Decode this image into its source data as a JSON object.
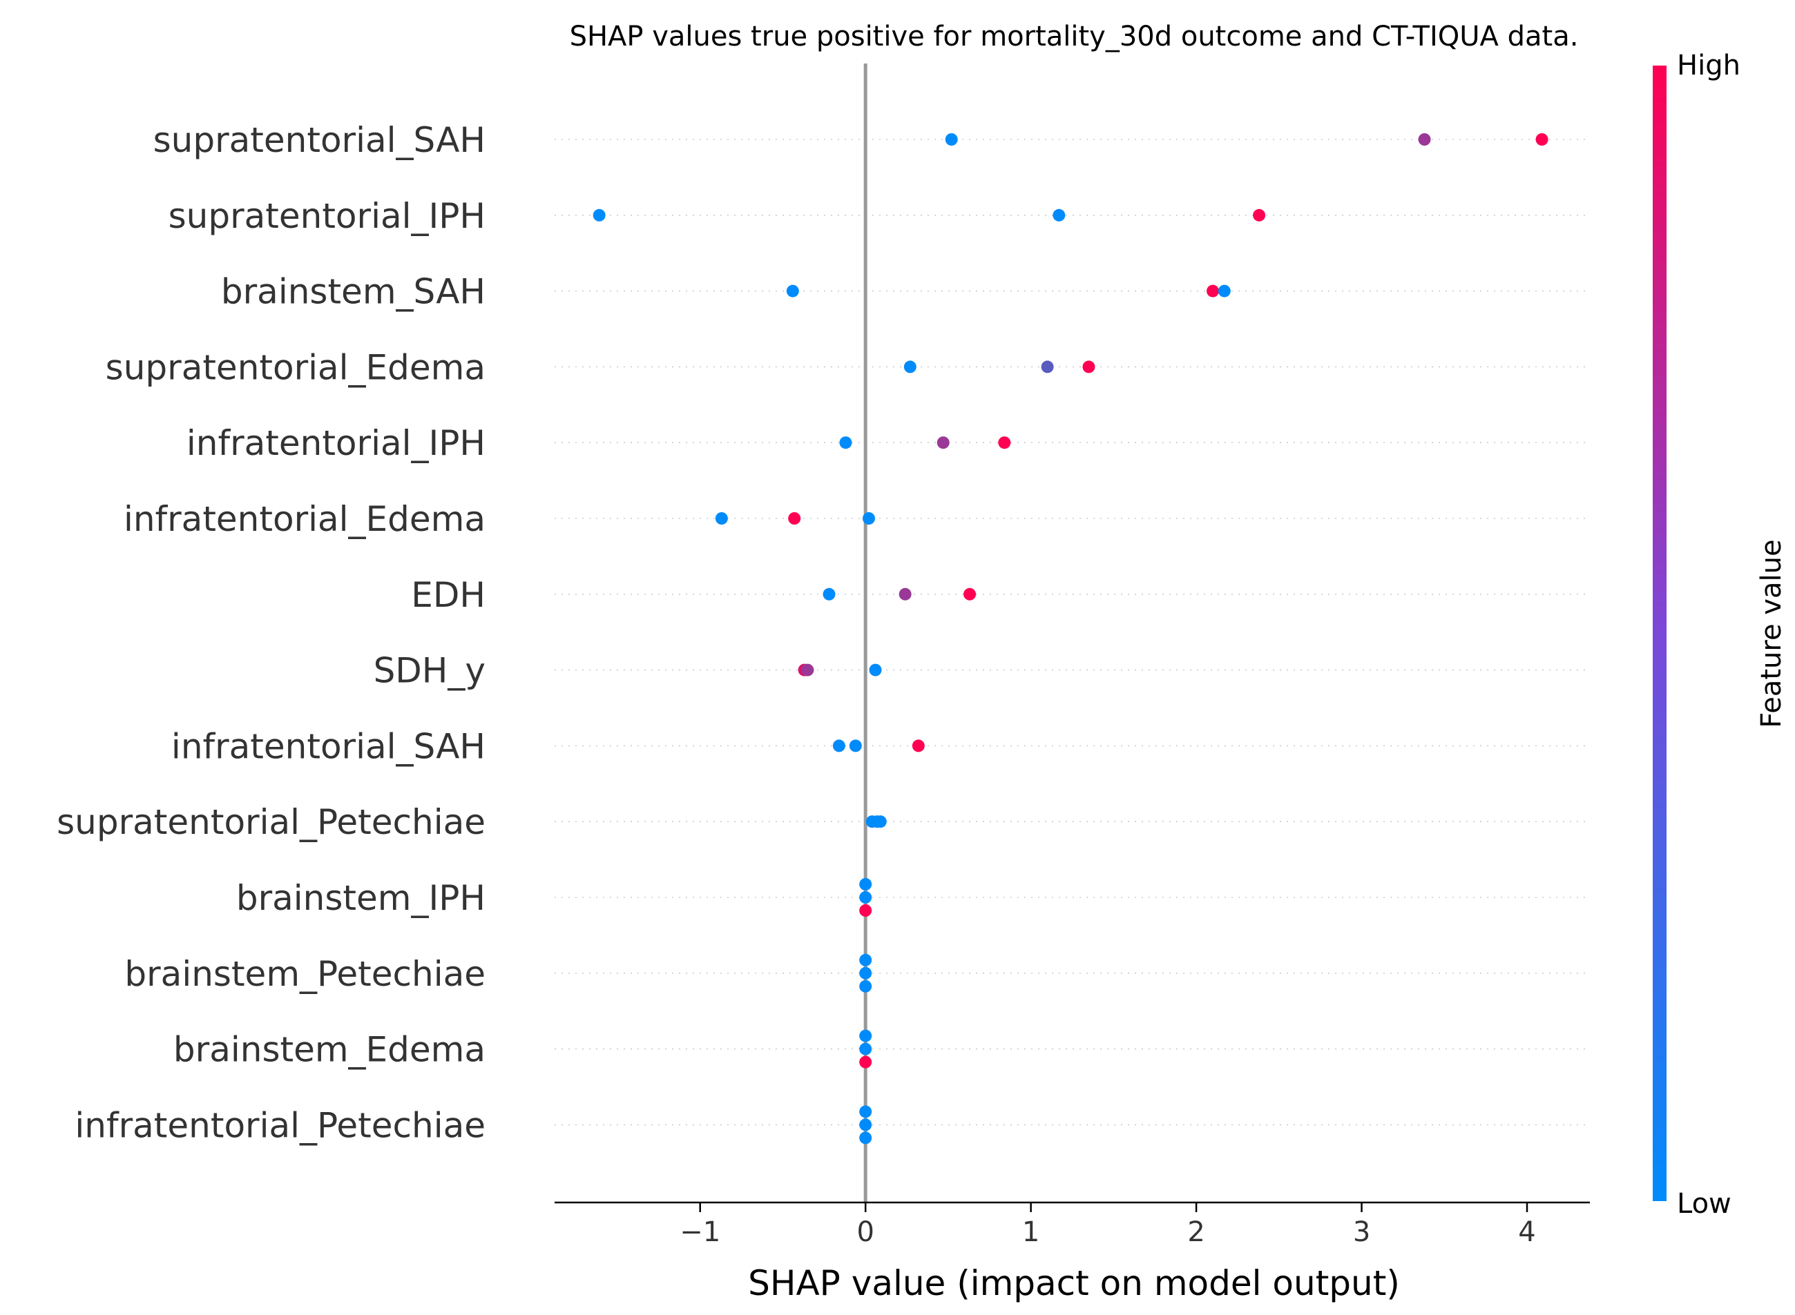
{
  "chart_data": {
    "type": "scatter",
    "title": "SHAP values true positive for mortality_30d outcome and CT-TIQUA data.",
    "xlabel": "SHAP value (impact on model output)",
    "xlim": [
      -1.88,
      4.38
    ],
    "xticks": [
      {
        "value": -1,
        "label": "−1"
      },
      {
        "value": 0,
        "label": "0"
      },
      {
        "value": 1,
        "label": "1"
      },
      {
        "value": 2,
        "label": "2"
      },
      {
        "value": 3,
        "label": "3"
      },
      {
        "value": 4,
        "label": "4"
      }
    ],
    "zero_line": 0,
    "colorbar": {
      "title": "Feature value",
      "high_label": "High",
      "low_label": "Low",
      "low_color": "#008bfb",
      "high_color": "#ff0052"
    },
    "features": [
      {
        "name": "supratentorial_SAH",
        "points": [
          {
            "x": 0.52,
            "v": 0.0,
            "o": 0
          },
          {
            "x": 3.38,
            "v": 0.6,
            "o": 0
          },
          {
            "x": 4.09,
            "v": 1.0,
            "o": 0
          }
        ]
      },
      {
        "name": "supratentorial_IPH",
        "points": [
          {
            "x": -1.61,
            "v": 0.0,
            "o": 0
          },
          {
            "x": 1.17,
            "v": 0.0,
            "o": 0
          },
          {
            "x": 2.38,
            "v": 1.0,
            "o": 0
          }
        ]
      },
      {
        "name": "brainstem_SAH",
        "points": [
          {
            "x": -0.44,
            "v": 0.0,
            "o": 0
          },
          {
            "x": 2.1,
            "v": 1.0,
            "o": 0
          },
          {
            "x": 2.17,
            "v": 0.0,
            "o": 0
          }
        ]
      },
      {
        "name": "supratentorial_Edema",
        "points": [
          {
            "x": 0.27,
            "v": 0.0,
            "o": 0
          },
          {
            "x": 1.1,
            "v": 0.35,
            "o": 0
          },
          {
            "x": 1.35,
            "v": 1.0,
            "o": 0
          }
        ]
      },
      {
        "name": "infratentorial_IPH",
        "points": [
          {
            "x": -0.12,
            "v": 0.0,
            "o": 0
          },
          {
            "x": 0.47,
            "v": 0.6,
            "o": 0
          },
          {
            "x": 0.84,
            "v": 1.0,
            "o": 0
          }
        ]
      },
      {
        "name": "infratentorial_Edema",
        "points": [
          {
            "x": -0.87,
            "v": 0.0,
            "o": 0
          },
          {
            "x": -0.43,
            "v": 1.0,
            "o": 0
          },
          {
            "x": 0.02,
            "v": 0.0,
            "o": 0
          }
        ]
      },
      {
        "name": "EDH",
        "points": [
          {
            "x": -0.22,
            "v": 0.0,
            "o": 0
          },
          {
            "x": 0.24,
            "v": 0.6,
            "o": 0
          },
          {
            "x": 0.63,
            "v": 1.0,
            "o": 0
          }
        ]
      },
      {
        "name": "SDH_y",
        "points": [
          {
            "x": -0.37,
            "v": 0.85,
            "o": 0
          },
          {
            "x": -0.35,
            "v": 0.6,
            "o": 0
          },
          {
            "x": 0.06,
            "v": 0.0,
            "o": 0
          }
        ]
      },
      {
        "name": "infratentorial_SAH",
        "points": [
          {
            "x": -0.16,
            "v": 0.0,
            "o": 0
          },
          {
            "x": -0.06,
            "v": 0.0,
            "o": 0
          },
          {
            "x": 0.32,
            "v": 1.0,
            "o": 0
          }
        ]
      },
      {
        "name": "supratentorial_Petechiae",
        "points": [
          {
            "x": 0.04,
            "v": 0.0,
            "o": 0
          },
          {
            "x": 0.07,
            "v": 0.0,
            "o": 0
          },
          {
            "x": 0.09,
            "v": 0.0,
            "o": 0
          }
        ]
      },
      {
        "name": "brainstem_IPH",
        "points": [
          {
            "x": 0.0,
            "v": 0.0,
            "o": -1
          },
          {
            "x": 0.0,
            "v": 0.0,
            "o": 0
          },
          {
            "x": 0.0,
            "v": 1.0,
            "o": 1
          }
        ]
      },
      {
        "name": "brainstem_Petechiae",
        "points": [
          {
            "x": 0.0,
            "v": 0.0,
            "o": -1
          },
          {
            "x": 0.0,
            "v": 0.0,
            "o": 0
          },
          {
            "x": 0.0,
            "v": 0.0,
            "o": 1
          }
        ]
      },
      {
        "name": "brainstem_Edema",
        "points": [
          {
            "x": 0.0,
            "v": 0.0,
            "o": -1
          },
          {
            "x": 0.0,
            "v": 0.0,
            "o": 0
          },
          {
            "x": 0.0,
            "v": 1.0,
            "o": 1
          }
        ]
      },
      {
        "name": "infratentorial_Petechiae",
        "points": [
          {
            "x": 0.0,
            "v": 0.0,
            "o": -1
          },
          {
            "x": 0.0,
            "v": 0.0,
            "o": 0
          },
          {
            "x": 0.0,
            "v": 0.0,
            "o": 1
          }
        ]
      }
    ]
  }
}
